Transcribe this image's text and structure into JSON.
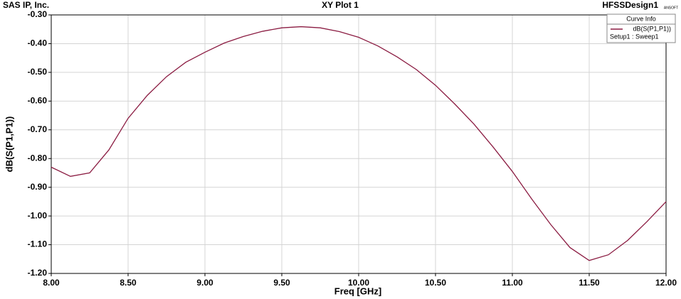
{
  "chart_data": {
    "type": "line",
    "title": "XY Plot 1",
    "company": "SAS IP, Inc.",
    "design": "HFSSDesign1",
    "logo": "ANSOFT",
    "xlabel": "Freq [GHz]",
    "ylabel": "dB(S(P1,P1))",
    "legend_title": "Curve Info",
    "grid": true,
    "legend": "upper right",
    "x": [
      8.0,
      8.125,
      8.25,
      8.375,
      8.5,
      8.625,
      8.75,
      8.875,
      9.0,
      9.125,
      9.25,
      9.375,
      9.5,
      9.625,
      9.75,
      9.875,
      10.0,
      10.125,
      10.25,
      10.375,
      10.5,
      10.625,
      10.75,
      10.875,
      11.0,
      11.125,
      11.25,
      11.375,
      11.5,
      11.625,
      11.75,
      11.875,
      12.0
    ],
    "series": [
      {
        "name": "dB(S(P1,P1))",
        "setup": "Setup1 : Sweep1",
        "color": "#8b1c42",
        "values": [
          -0.83,
          -0.862,
          -0.85,
          -0.77,
          -0.66,
          -0.58,
          -0.515,
          -0.465,
          -0.43,
          -0.398,
          -0.375,
          -0.357,
          -0.345,
          -0.341,
          -0.345,
          -0.358,
          -0.378,
          -0.408,
          -0.446,
          -0.49,
          -0.545,
          -0.61,
          -0.68,
          -0.76,
          -0.845,
          -0.94,
          -1.03,
          -1.11,
          -1.155,
          -1.135,
          -1.085,
          -1.02,
          -0.95
        ]
      }
    ],
    "xlim": [
      8.0,
      12.0
    ],
    "xticks": [
      {
        "value": 8.0,
        "label": "8.00"
      },
      {
        "value": 8.5,
        "label": "8.50"
      },
      {
        "value": 9.0,
        "label": "9.00"
      },
      {
        "value": 9.5,
        "label": "9.50"
      },
      {
        "value": 10.0,
        "label": "10.00"
      },
      {
        "value": 10.5,
        "label": "10.50"
      },
      {
        "value": 11.0,
        "label": "11.00"
      },
      {
        "value": 11.5,
        "label": "11.50"
      },
      {
        "value": 12.0,
        "label": "12.00"
      }
    ],
    "ylim": [
      -1.2,
      -0.3
    ],
    "yticks": [
      {
        "value": -0.3,
        "label": "-0.30"
      },
      {
        "value": -0.4,
        "label": "-0.40"
      },
      {
        "value": -0.5,
        "label": "-0.50"
      },
      {
        "value": -0.6,
        "label": "-0.60"
      },
      {
        "value": -0.7,
        "label": "-0.70"
      },
      {
        "value": -0.8,
        "label": "-0.80"
      },
      {
        "value": -0.9,
        "label": "-0.90"
      },
      {
        "value": -1.0,
        "label": "-1.00"
      },
      {
        "value": -1.1,
        "label": "-1.10"
      },
      {
        "value": -1.2,
        "label": "-1.20"
      }
    ]
  }
}
